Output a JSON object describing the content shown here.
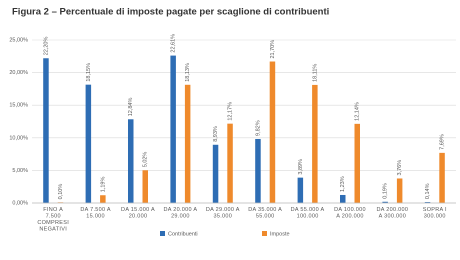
{
  "chart_data": {
    "type": "bar",
    "title": "Figura 2 – Percentuale di imposte pagate per scaglione di contribuenti",
    "categories": [
      "FINO A 7.500 COMPRESI NEGATIVI",
      "DA 7.500 A 15.000",
      "DA 15.000 A 20.000",
      "DA 20.000 A 29.000",
      "DA 29.000 A 35.000",
      "DA 35.000 A 55.000",
      "DA 55.000 A 100.000",
      "DA 100.000 A 200.000",
      "DA 200.000 A 300.000",
      "SOPRA I 300.000"
    ],
    "series": [
      {
        "name": "Contribuenti",
        "color": "#2e6db4",
        "values": [
          22.2,
          18.15,
          12.84,
          22.61,
          8.93,
          9.82,
          3.89,
          1.23,
          0.19,
          0.14
        ],
        "value_labels": [
          "22,20%",
          "18,15%",
          "12,84%",
          "22,61%",
          "8,93%",
          "9,82%",
          "3,89%",
          "1,23%",
          "0,19%",
          "0,14%"
        ]
      },
      {
        "name": "Imposte",
        "color": "#ef8a2c",
        "values": [
          0.1,
          1.19,
          5.02,
          18.13,
          12.17,
          21.7,
          18.11,
          12.14,
          3.76,
          7.69
        ],
        "value_labels": [
          "0,10%",
          "1,19%",
          "5,02%",
          "18,13%",
          "12,17%",
          "21,70%",
          "18,11%",
          "12,14%",
          "3,76%",
          "7,69%"
        ]
      }
    ],
    "ylim": [
      0,
      25
    ],
    "yticks": [
      {
        "value": 0,
        "label": "0,00%"
      },
      {
        "value": 5,
        "label": "5,00%"
      },
      {
        "value": 10,
        "label": "10,00%"
      },
      {
        "value": 15,
        "label": "15,00%"
      },
      {
        "value": 20,
        "label": "20,00%"
      },
      {
        "value": 25,
        "label": "25,00%"
      }
    ],
    "grid": true,
    "legend": "bottom"
  }
}
